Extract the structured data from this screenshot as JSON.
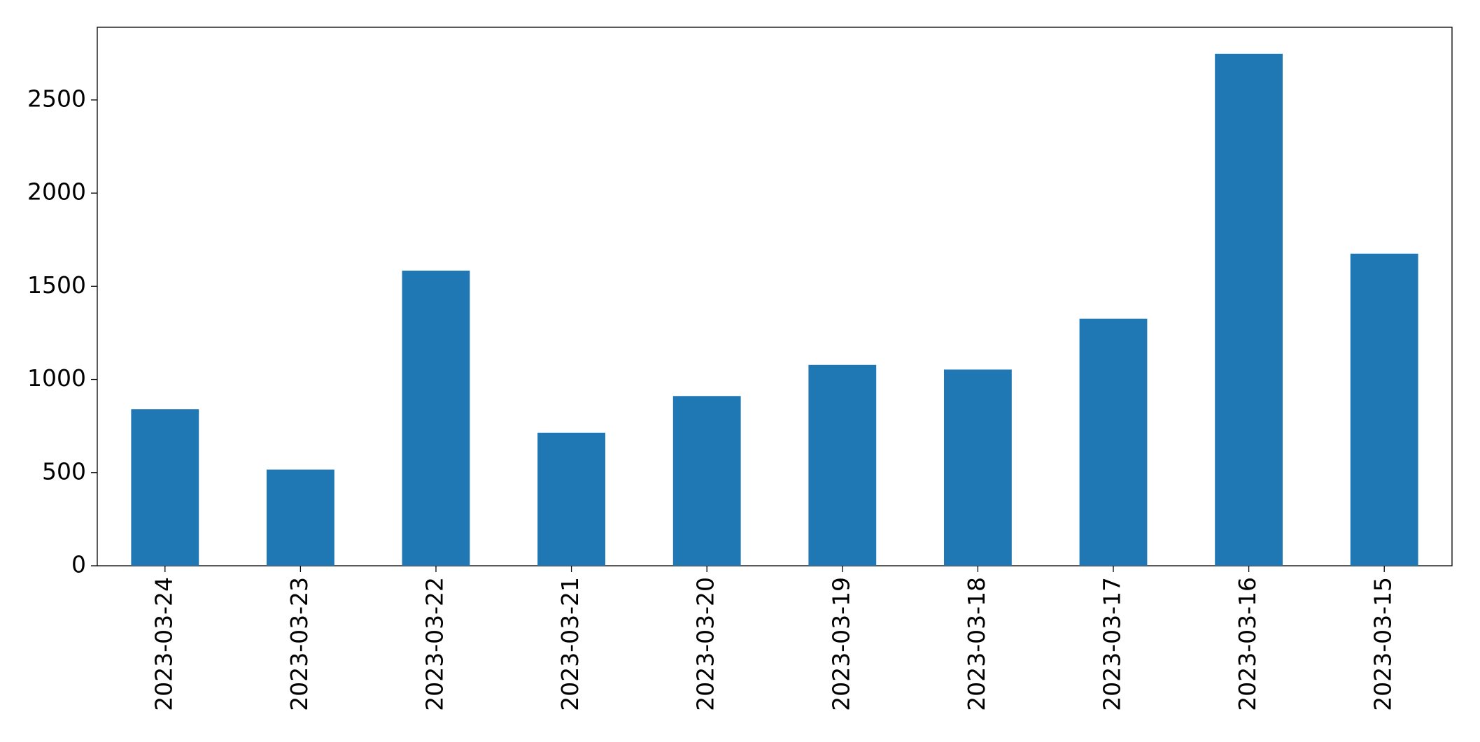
{
  "chart_data": {
    "type": "bar",
    "categories": [
      "2023-03-24",
      "2023-03-23",
      "2023-03-22",
      "2023-03-21",
      "2023-03-20",
      "2023-03-19",
      "2023-03-18",
      "2023-03-17",
      "2023-03-16",
      "2023-03-15"
    ],
    "values": [
      840,
      516,
      1584,
      714,
      911,
      1078,
      1053,
      1326,
      2748,
      1675
    ],
    "color": "#1f77b4",
    "ylim": [
      0,
      2890
    ],
    "yticks": [
      0,
      500,
      1000,
      1500,
      2000,
      2500
    ],
    "grid": false
  }
}
